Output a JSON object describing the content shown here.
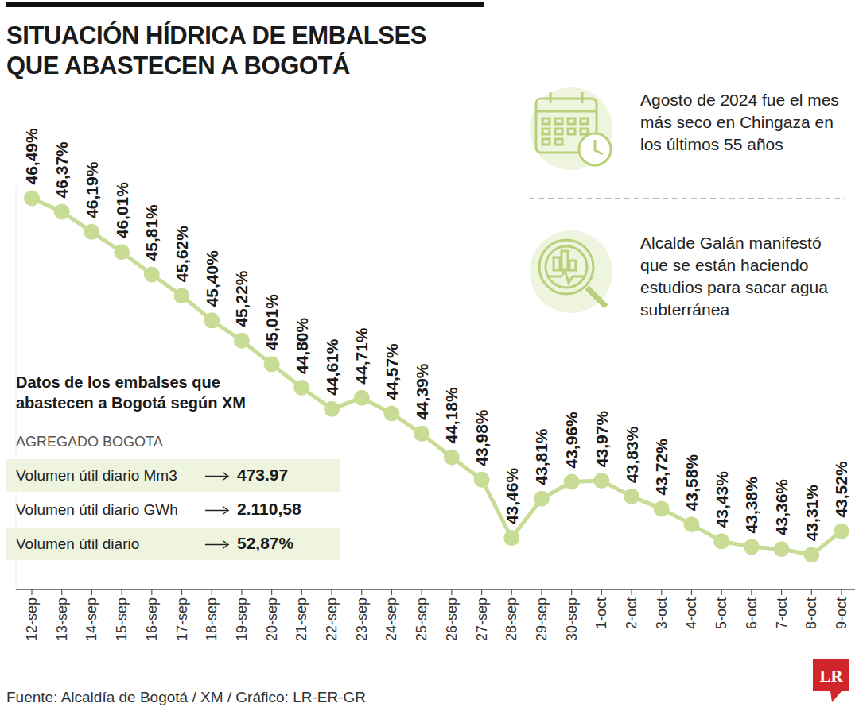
{
  "chart_data": {
    "type": "line",
    "title": "SITUACIÓN HÍDRICA DE EMBALSES\nQUE ABASTECEN A BOGOTÁ",
    "categories": [
      "12-sep",
      "13-sep",
      "14-sep",
      "15-sep",
      "16-sep",
      "17-sep",
      "18-sep",
      "19-sep",
      "20-sep",
      "21-sep",
      "22-sep",
      "23-sep",
      "24-sep",
      "25-sep",
      "26-sep",
      "27-sep",
      "28-sep",
      "29-sep",
      "30-sep",
      "1-oct",
      "2-oct",
      "3-oct",
      "4-oct",
      "5-oct",
      "6-oct",
      "7-oct",
      "8-oct",
      "9-oct"
    ],
    "values": [
      46.49,
      46.37,
      46.19,
      46.01,
      45.81,
      45.62,
      45.4,
      45.22,
      45.01,
      44.8,
      44.61,
      44.71,
      44.57,
      44.39,
      44.18,
      43.98,
      43.46,
      43.81,
      43.96,
      43.97,
      43.83,
      43.72,
      43.58,
      43.43,
      43.38,
      43.36,
      43.31,
      43.52
    ],
    "value_labels": [
      "46,49%",
      "46,37%",
      "46,19%",
      "46,01%",
      "45,81%",
      "45,62%",
      "45,40%",
      "45,22%",
      "45,01%",
      "44,80%",
      "44,61%",
      "44,71%",
      "44,57%",
      "44,39%",
      "44,18%",
      "43,98%",
      "43,46%",
      "43,81%",
      "43,96%",
      "43,97%",
      "43,83%",
      "43,72%",
      "43,58%",
      "43,43%",
      "43,38%",
      "43,36%",
      "43,31%",
      "43,52%"
    ],
    "color": "#c8dc96",
    "marker": "circle",
    "line_style": "solid",
    "data_labels": true,
    "tick_labels": "x",
    "grid": false,
    "ylim": [
      43.0,
      46.6
    ],
    "annotations": [
      "Agosto de 2024 fue el mes más seco en Chingaza en los últimos 55 años",
      "Alcalde Galán manifestó que se están haciendo estudios para sacar agua subterránea"
    ],
    "table": {
      "title": "Datos de los embalses que abastecen a Bogotá según XM",
      "subtitle": "AGREGADO BOGOTA",
      "rows": [
        {
          "label": "Volumen útil diario Mm3",
          "value": "473.97"
        },
        {
          "label": "Volumen útil diario GWh",
          "value": "2.110,58"
        },
        {
          "label": "Volumen útil diario",
          "value": "52,87%"
        }
      ]
    },
    "source": "Fuente: Alcaldía de Bogotá / XM / Gráfico: LR-ER-GR",
    "logo": "LR"
  }
}
